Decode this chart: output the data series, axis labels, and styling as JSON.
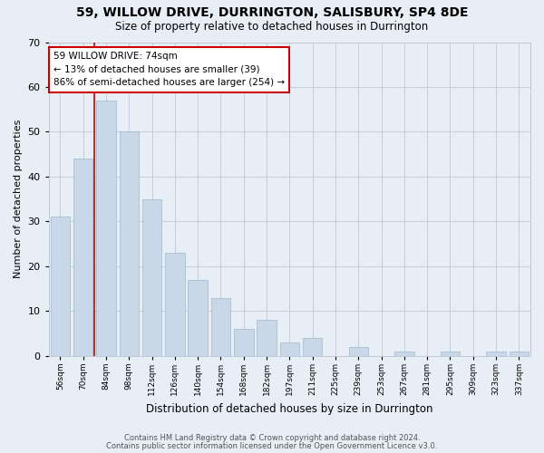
{
  "title1": "59, WILLOW DRIVE, DURRINGTON, SALISBURY, SP4 8DE",
  "title2": "Size of property relative to detached houses in Durrington",
  "xlabel": "Distribution of detached houses by size in Durrington",
  "ylabel": "Number of detached properties",
  "categories": [
    "56sqm",
    "70sqm",
    "84sqm",
    "98sqm",
    "112sqm",
    "126sqm",
    "140sqm",
    "154sqm",
    "168sqm",
    "182sqm",
    "197sqm",
    "211sqm",
    "225sqm",
    "239sqm",
    "253sqm",
    "267sqm",
    "281sqm",
    "295sqm",
    "309sqm",
    "323sqm",
    "337sqm"
  ],
  "values": [
    31,
    44,
    57,
    50,
    35,
    23,
    17,
    13,
    6,
    8,
    3,
    4,
    0,
    2,
    0,
    1,
    0,
    1,
    0,
    1,
    1
  ],
  "bar_color": "#c8d8e8",
  "bar_edge_color": "#a0b8cc",
  "grid_color": "#c0c8d8",
  "bg_color": "#e8eef5",
  "annotation_line1": "59 WILLOW DRIVE: 74sqm",
  "annotation_line2": "← 13% of detached houses are smaller (39)",
  "annotation_line3": "86% of semi-detached houses are larger (254) →",
  "annotation_box_color": "white",
  "annotation_box_edge": "#cc0000",
  "red_line_color": "#cc0000",
  "red_line_x": 1.5,
  "ylim": [
    0,
    70
  ],
  "yticks": [
    0,
    10,
    20,
    30,
    40,
    50,
    60,
    70
  ],
  "footnote1": "Contains HM Land Registry data © Crown copyright and database right 2024.",
  "footnote2": "Contains public sector information licensed under the Open Government Licence v3.0."
}
